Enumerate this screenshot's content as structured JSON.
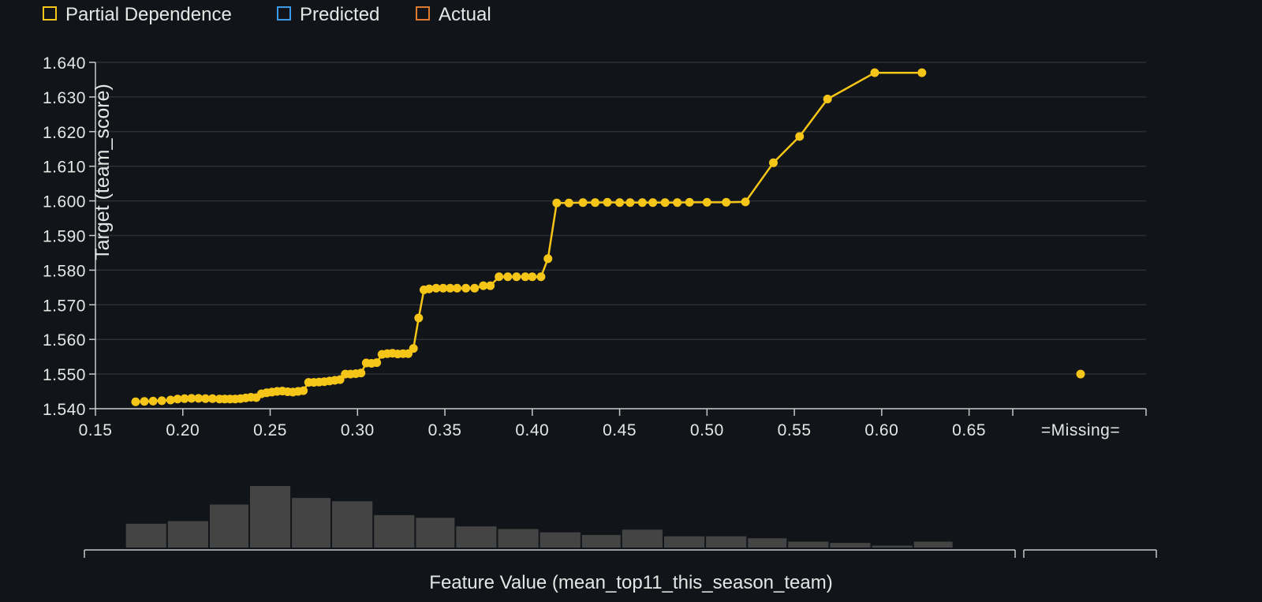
{
  "colors": {
    "background": "#111418",
    "partial_dependence": "#f5c518",
    "predicted": "#3a9be8",
    "actual": "#e07a30",
    "grid": "#2c2f34",
    "axis": "#c8c8c8",
    "text": "#e6e6e6",
    "histogram_bar": "#444444"
  },
  "legend": {
    "items": [
      {
        "label": "Partial Dependence",
        "color": "#f5c518"
      },
      {
        "label": "Predicted",
        "color": "#3a9be8"
      },
      {
        "label": "Actual",
        "color": "#e07a30"
      }
    ]
  },
  "chart_data": {
    "type": "line",
    "ylabel": "Target (team_score)",
    "xlabel": "Feature Value (mean_top11_this_season_team)",
    "xlim": [
      0.15,
      0.675
    ],
    "ylim": [
      1.54,
      1.64
    ],
    "x_ticks": [
      "0.15",
      "0.20",
      "0.25",
      "0.30",
      "0.35",
      "0.40",
      "0.45",
      "0.50",
      "0.55",
      "0.60",
      "0.65"
    ],
    "y_ticks": [
      "1.540",
      "1.550",
      "1.560",
      "1.570",
      "1.580",
      "1.590",
      "1.600",
      "1.610",
      "1.620",
      "1.630",
      "1.640"
    ],
    "missing_label": "=Missing=",
    "missing_value": 1.55,
    "legend_position": "top-left",
    "grid": true,
    "series": [
      {
        "name": "Partial Dependence",
        "x": [
          0.173,
          0.178,
          0.183,
          0.188,
          0.193,
          0.197,
          0.201,
          0.205,
          0.209,
          0.213,
          0.217,
          0.221,
          0.224,
          0.227,
          0.23,
          0.233,
          0.236,
          0.239,
          0.242,
          0.245,
          0.248,
          0.251,
          0.254,
          0.257,
          0.26,
          0.263,
          0.266,
          0.269,
          0.272,
          0.275,
          0.278,
          0.281,
          0.284,
          0.287,
          0.29,
          0.293,
          0.296,
          0.299,
          0.302,
          0.305,
          0.308,
          0.311,
          0.314,
          0.317,
          0.32,
          0.323,
          0.326,
          0.329,
          0.332,
          0.335,
          0.338,
          0.341,
          0.345,
          0.349,
          0.353,
          0.357,
          0.362,
          0.367,
          0.372,
          0.376,
          0.381,
          0.386,
          0.391,
          0.396,
          0.4,
          0.405,
          0.409,
          0.414,
          0.421,
          0.429,
          0.436,
          0.443,
          0.45,
          0.456,
          0.463,
          0.469,
          0.476,
          0.483,
          0.49,
          0.5,
          0.511,
          0.522,
          0.538,
          0.553,
          0.569,
          0.596,
          0.623
        ],
        "values": [
          1.542,
          1.5421,
          1.5422,
          1.5423,
          1.5425,
          1.5428,
          1.5429,
          1.543,
          1.543,
          1.5429,
          1.5429,
          1.5428,
          1.5428,
          1.5428,
          1.5428,
          1.5429,
          1.5431,
          1.5433,
          1.5432,
          1.5443,
          1.5446,
          1.5448,
          1.545,
          1.5451,
          1.5449,
          1.5448,
          1.545,
          1.5452,
          1.5476,
          1.5476,
          1.5477,
          1.5478,
          1.548,
          1.5482,
          1.5484,
          1.55,
          1.55,
          1.5501,
          1.5503,
          1.5532,
          1.5531,
          1.5533,
          1.5557,
          1.5559,
          1.556,
          1.5558,
          1.5559,
          1.5559,
          1.5574,
          1.5662,
          1.5743,
          1.5746,
          1.5748,
          1.5748,
          1.5748,
          1.5748,
          1.5748,
          1.5748,
          1.5755,
          1.5755,
          1.5781,
          1.5781,
          1.5781,
          1.5781,
          1.5781,
          1.5781,
          1.5833,
          1.5994,
          1.5994,
          1.5995,
          1.5995,
          1.5996,
          1.5995,
          1.5995,
          1.5995,
          1.5995,
          1.5995,
          1.5995,
          1.5996,
          1.5996,
          1.5996,
          1.5997,
          1.611,
          1.6186,
          1.6294,
          1.637,
          1.637
        ]
      }
    ],
    "histogram": {
      "edges": [
        0.167,
        0.191,
        0.215,
        0.238,
        0.262,
        0.285,
        0.309,
        0.333,
        0.356,
        0.38,
        0.404,
        0.428,
        0.451,
        0.475,
        0.499,
        0.523,
        0.546,
        0.57,
        0.594,
        0.618,
        0.641
      ],
      "counts": [
        36,
        40,
        65,
        93,
        75,
        70,
        49,
        45,
        32,
        28,
        23,
        19,
        27,
        17,
        17,
        14,
        9,
        7,
        3,
        9
      ]
    }
  }
}
